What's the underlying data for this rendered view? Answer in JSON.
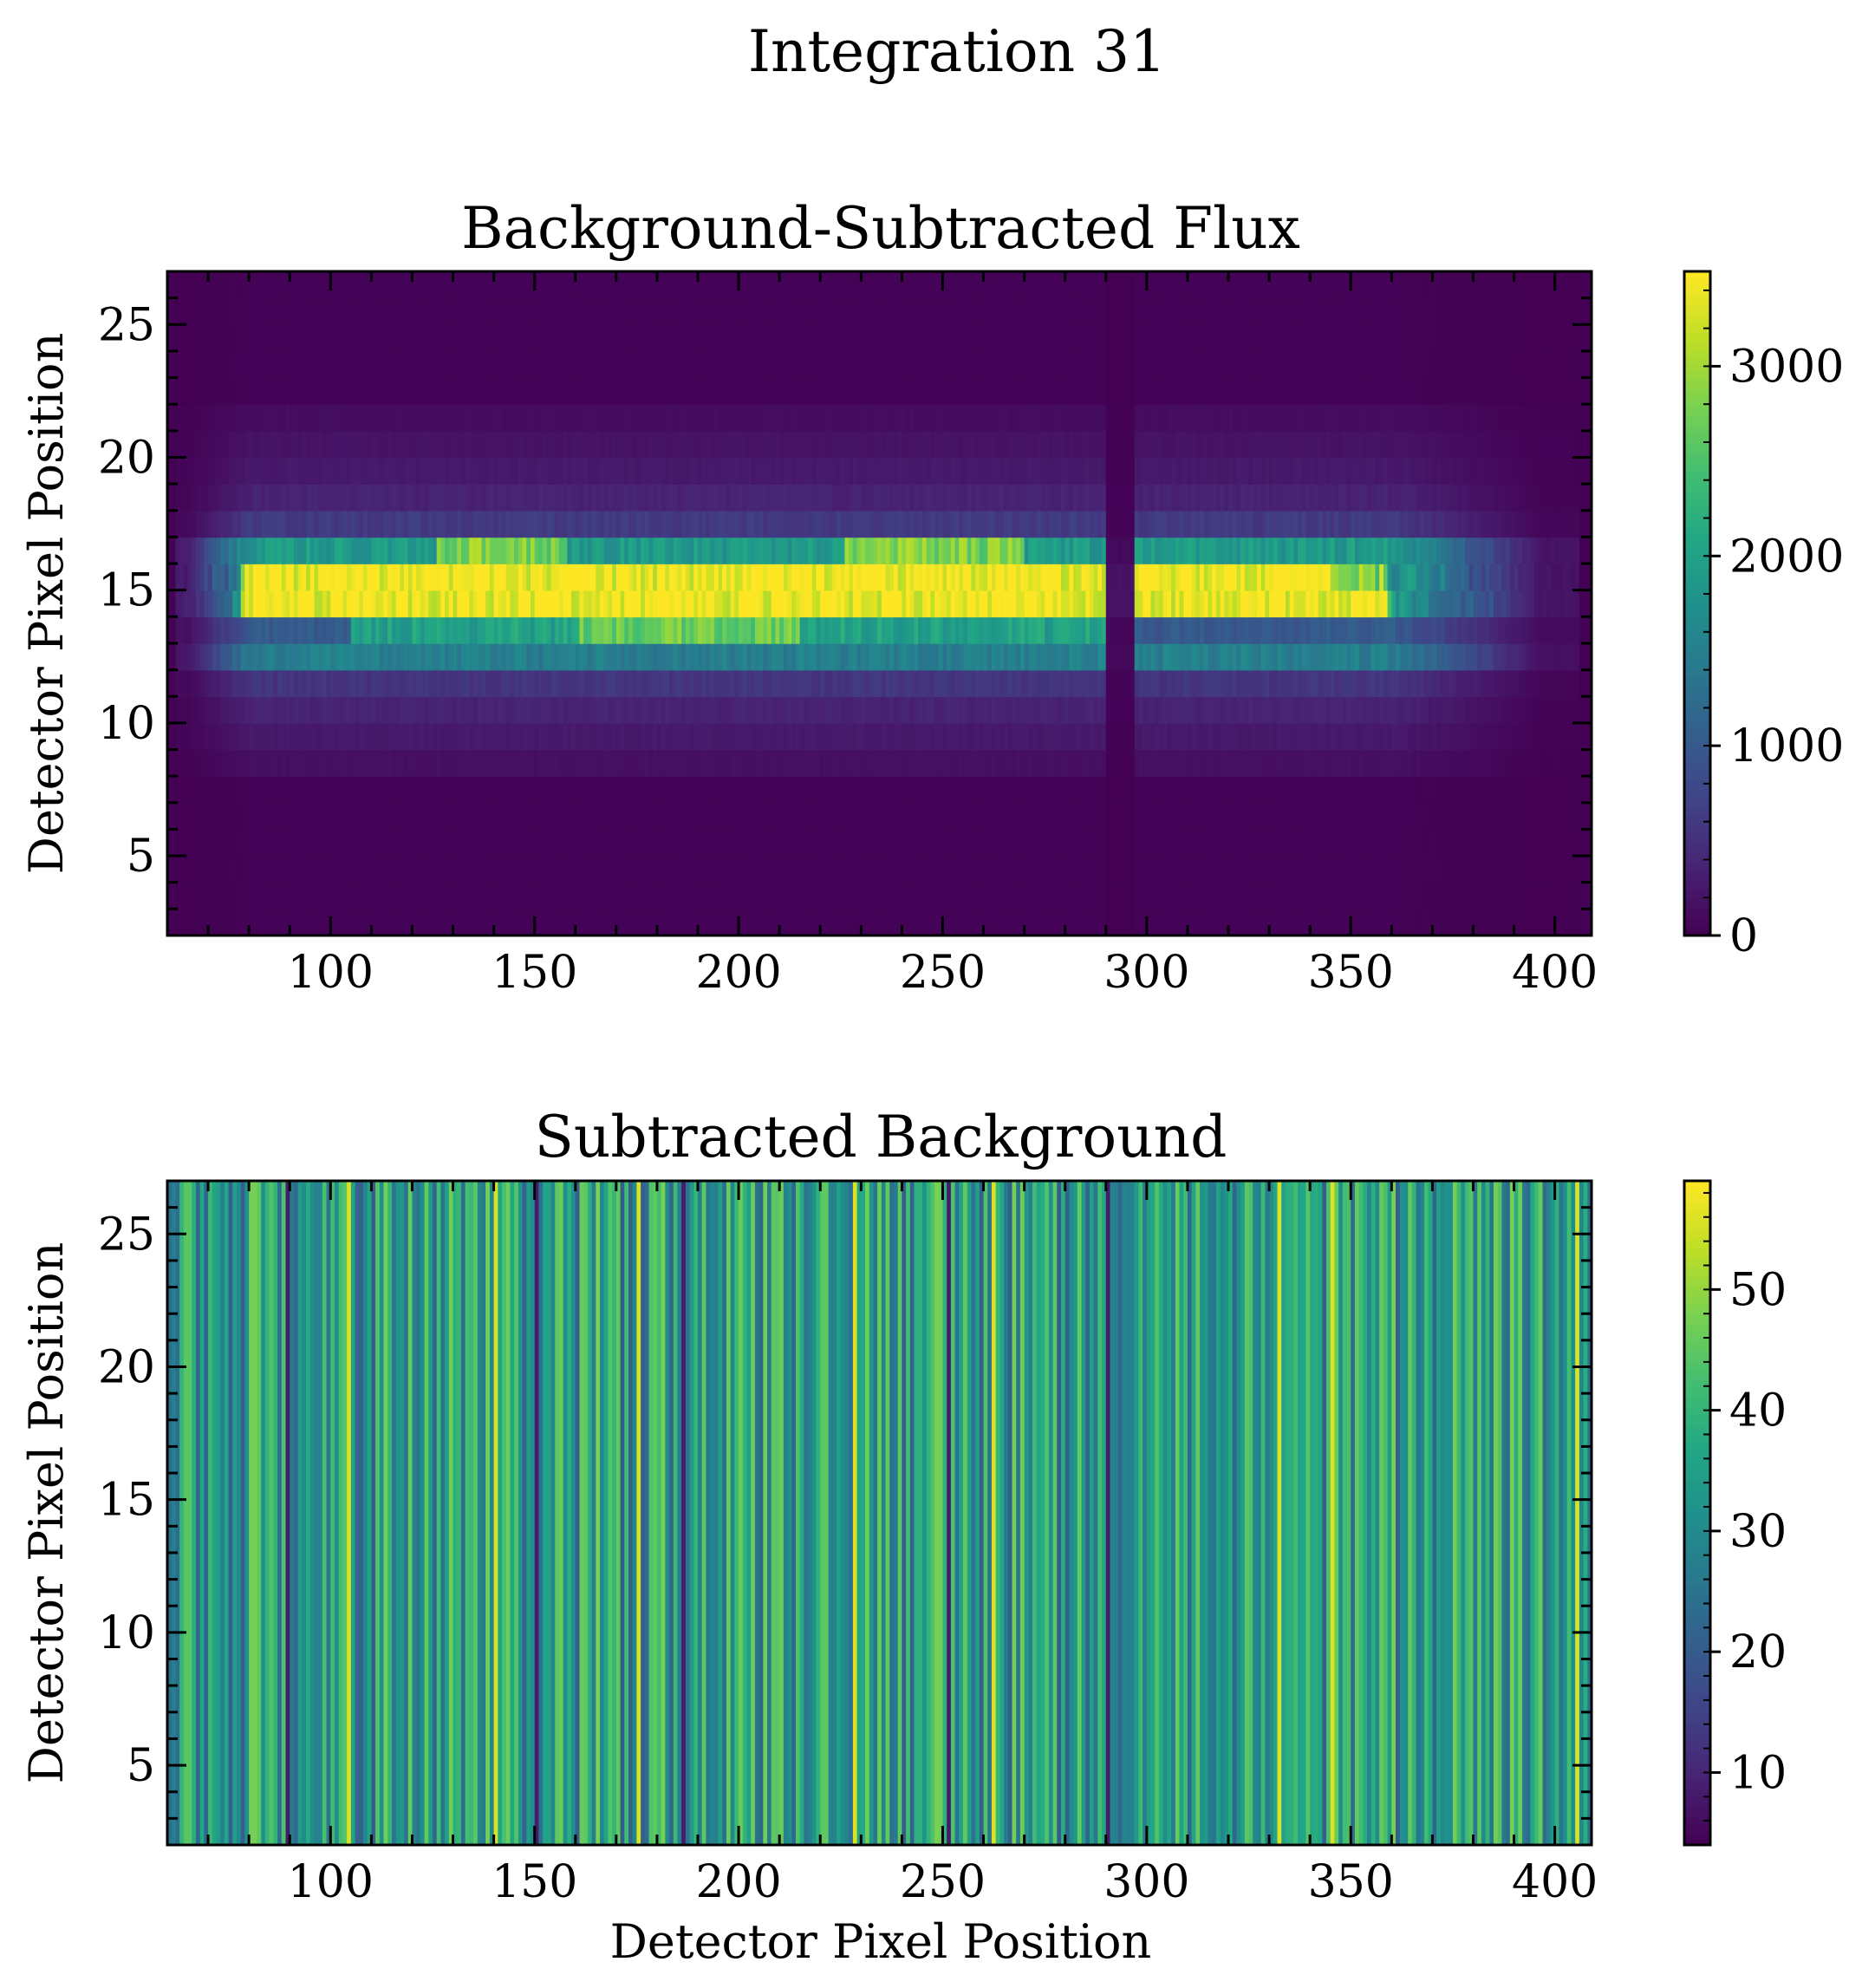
{
  "figure": {
    "suptitle": "Integration 31"
  },
  "chart_data": [
    {
      "type": "heatmap",
      "title": "Background-Subtracted Flux",
      "xlabel": "",
      "ylabel": "Detector Pixel Position",
      "xlim": [
        60,
        409
      ],
      "ylim": [
        2,
        27
      ],
      "xticks": [
        100,
        150,
        200,
        250,
        300,
        350,
        400
      ],
      "yticks": [
        5,
        10,
        15,
        20,
        25
      ],
      "colormap": "viridis",
      "colorbar": {
        "range": [
          0,
          3500
        ],
        "ticks": [
          0,
          1000,
          2000,
          3000
        ]
      },
      "features": {
        "bright_trace_rows": [
          14,
          15
        ],
        "trace_start_x": 68,
        "trace_end_x": 395,
        "gap_x": [
          290,
          296
        ],
        "saturated_value": 3500,
        "wing_rows_upper": {
          "16": 1900,
          "17": 600,
          "18": 350,
          "19": 250,
          "20": 180,
          "21": 120
        },
        "wing_rows_lower": {
          "13": 2000,
          "12": 1500,
          "11": 550,
          "10": 350,
          "9": 250,
          "8": 150
        }
      }
    },
    {
      "type": "heatmap",
      "title": "Subtracted Background",
      "xlabel": "Detector Pixel Position",
      "ylabel": "Detector Pixel Position",
      "xlim": [
        60,
        409
      ],
      "ylim": [
        2,
        27
      ],
      "xticks": [
        100,
        150,
        200,
        250,
        300,
        350,
        400
      ],
      "yticks": [
        5,
        10,
        15,
        20,
        25
      ],
      "colormap": "viridis",
      "colorbar": {
        "range": [
          4,
          59
        ],
        "ticks": [
          10,
          20,
          30,
          40,
          50
        ]
      },
      "features": {
        "structure": "column-wise vertical stripes",
        "typical_range": [
          15,
          50
        ],
        "bright_columns": [
          104,
          140,
          175,
          228,
          262,
          332,
          345,
          405
        ],
        "dark_columns": [
          89,
          150,
          186,
          251,
          290
        ]
      }
    }
  ]
}
